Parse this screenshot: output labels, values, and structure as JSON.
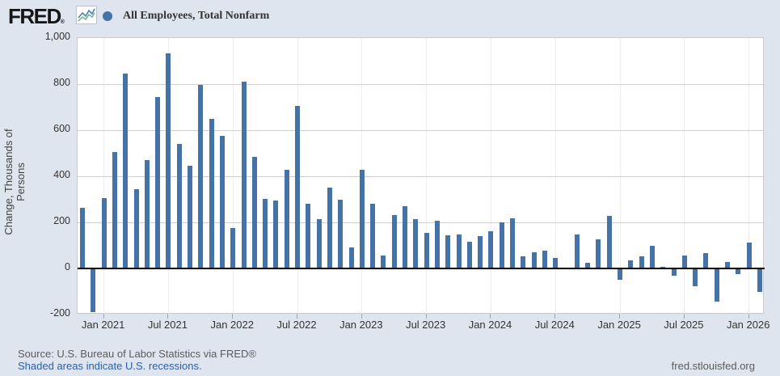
{
  "header": {
    "logo": "FRED",
    "registered": "®",
    "legend": {
      "label": "All Employees, Total Nonfarm"
    }
  },
  "chart_data": {
    "type": "bar",
    "title": "All Employees, Total Nonfarm",
    "ylabel": "Change, Thousands of Persons",
    "ylim": [
      -200,
      1000
    ],
    "ytick_interval": 200,
    "yticks": [
      {
        "label": "1,000",
        "value": 1000
      },
      {
        "label": "800",
        "value": 800
      },
      {
        "label": "600",
        "value": 600
      },
      {
        "label": "400",
        "value": 400
      },
      {
        "label": "200",
        "value": 200
      },
      {
        "label": "0",
        "value": 0
      },
      {
        "label": "-200",
        "value": -200
      }
    ],
    "xtick_labels": [
      "Jan 2021",
      "Jul 2021",
      "Jan 2022",
      "Jul 2022",
      "Jan 2023",
      "Jul 2023",
      "Jan 2024",
      "Jul 2024",
      "Jan 2025",
      "Jul 2025",
      "Jan 2026"
    ],
    "grid": "horizontal",
    "legend_position": "top-left",
    "bar_color": "#4572a7",
    "zero_line_color": "#000000",
    "x": [
      "Nov 2020",
      "Dec 2020",
      "Jan 2021",
      "Feb 2021",
      "Mar 2021",
      "Apr 2021",
      "May 2021",
      "Jun 2021",
      "Jul 2021",
      "Aug 2021",
      "Sep 2021",
      "Oct 2021",
      "Nov 2021",
      "Dec 2021",
      "Jan 2022",
      "Feb 2022",
      "Mar 2022",
      "Apr 2022",
      "May 2022",
      "Jun 2022",
      "Jul 2022",
      "Aug 2022",
      "Sep 2022",
      "Oct 2022",
      "Nov 2022",
      "Dec 2022",
      "Jan 2023",
      "Feb 2023",
      "Mar 2023",
      "Apr 2023",
      "May 2023",
      "Jun 2023",
      "Jul 2023",
      "Aug 2023",
      "Sep 2023",
      "Oct 2023",
      "Nov 2023",
      "Dec 2023",
      "Jan 2024",
      "Feb 2024",
      "Mar 2024",
      "Apr 2024",
      "May 2024",
      "Jun 2024",
      "Jul 2024",
      "Aug 2024",
      "Sep 2024",
      "Oct 2024",
      "Nov 2024",
      "Dec 2024",
      "Jan 2025",
      "Feb 2025",
      "Mar 2025",
      "Apr 2025",
      "May 2025",
      "Jun 2025",
      "Jul 2025",
      "Aug 2025",
      "Sep 2025",
      "Oct 2025",
      "Nov 2025",
      "Dec 2025",
      "Jan 2026",
      "Feb 2026"
    ],
    "values": [
      264,
      -190,
      305,
      505,
      845,
      345,
      470,
      745,
      935,
      540,
      447,
      795,
      650,
      575,
      177,
      810,
      485,
      302,
      293,
      428,
      705,
      282,
      213,
      350,
      298,
      90,
      427,
      279,
      57,
      232,
      270,
      213,
      154,
      206,
      144,
      149,
      116,
      140,
      163,
      199,
      216,
      53,
      70,
      78,
      45,
      0,
      146,
      25,
      125,
      228,
      -50,
      35,
      54,
      98,
      8,
      -33,
      55,
      -78,
      65,
      -144,
      27,
      -26,
      114,
      -101
    ]
  },
  "footer": {
    "source": "Source: U.S. Bureau of Labor Statistics via FRED®",
    "recessions": "Shaded areas indicate U.S. recessions.",
    "site": "fred.stlouisfed.org"
  },
  "colors": {
    "page_background": "#dfe5ee",
    "plot_background": "#ffffff",
    "gridline": "#cfcfcf",
    "link": "#2c5fa8",
    "text": "#333333"
  }
}
